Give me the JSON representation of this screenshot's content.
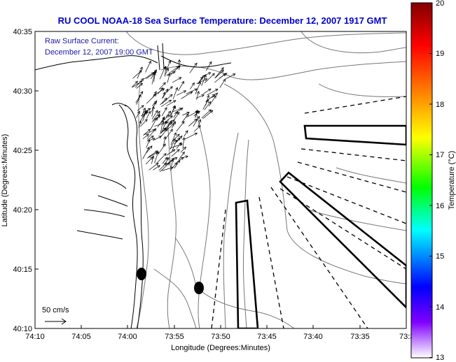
{
  "title": "RU COOL  NOAA-18  Sea Surface Temperature:  December 12, 2007 1917 GMT",
  "annotation": {
    "line1": "Raw Surface Current:",
    "line2": "December 12, 2007 19:00 GMT"
  },
  "scale_label": "50 cm/s",
  "x_axis": {
    "label": "Longitude (Degrees:Minutes)",
    "ticks": [
      "74:10",
      "74:05",
      "74:00",
      "73:55",
      "73:50",
      "73:45",
      "73:40",
      "73:35",
      "73:3"
    ]
  },
  "y_axis": {
    "label": "Latitude (Degrees:Minutes)",
    "ticks": [
      "40:35",
      "40:30",
      "40:25",
      "40:20",
      "40:15",
      "40:10"
    ]
  },
  "colorbar": {
    "label": "Temperature (°C)",
    "ticks": [
      "20",
      "19",
      "18",
      "17",
      "16",
      "15",
      "14",
      "13"
    ],
    "colors": [
      "#800000",
      "#ff0000",
      "#ff8800",
      "#ffff00",
      "#00ff00",
      "#00ffff",
      "#0000ff",
      "#ff80ff"
    ]
  }
}
